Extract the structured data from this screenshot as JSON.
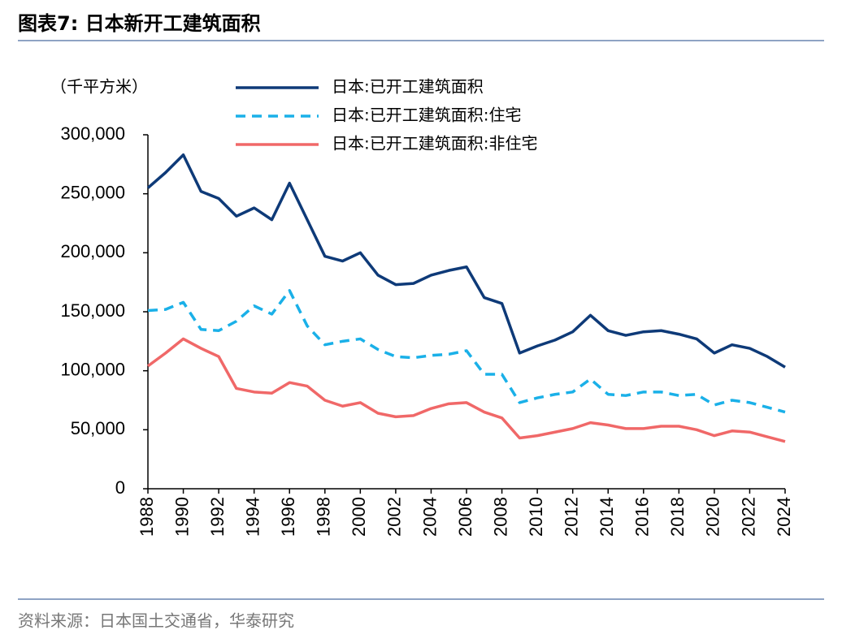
{
  "chart_data": {
    "type": "line",
    "title": "图表7:  日本新开工建筑面积",
    "unit_label": "（千平方米）",
    "source": "资料来源：日本国土交通省，华泰研究",
    "x": [
      1988,
      1989,
      1990,
      1991,
      1992,
      1993,
      1994,
      1995,
      1996,
      1997,
      1998,
      1999,
      2000,
      2001,
      2002,
      2003,
      2004,
      2005,
      2006,
      2007,
      2008,
      2009,
      2010,
      2011,
      2012,
      2013,
      2014,
      2015,
      2016,
      2017,
      2018,
      2019,
      2020,
      2021,
      2022,
      2023,
      2024
    ],
    "series": [
      {
        "name": "日本:已开工建筑面积",
        "color": "#0e3a78",
        "dash": false,
        "values": [
          255000,
          268000,
          283000,
          252000,
          246000,
          231000,
          238000,
          228000,
          259000,
          228000,
          197000,
          193000,
          200000,
          181000,
          173000,
          174000,
          181000,
          185000,
          188000,
          162000,
          157000,
          115000,
          121000,
          126000,
          133000,
          147000,
          134000,
          130000,
          133000,
          134000,
          131000,
          127000,
          115000,
          122000,
          119000,
          112000,
          103000
        ]
      },
      {
        "name": "日本:已开工建筑面积:住宅",
        "color": "#1ab0e8",
        "dash": true,
        "values": [
          151000,
          152000,
          158000,
          135000,
          134000,
          142000,
          155000,
          148000,
          168000,
          138000,
          122000,
          125000,
          127000,
          118000,
          112000,
          111000,
          113000,
          114000,
          117000,
          97000,
          97000,
          73000,
          77000,
          80000,
          82000,
          93000,
          80000,
          79000,
          82000,
          82000,
          79000,
          80000,
          71000,
          75000,
          73000,
          69000,
          65000
        ]
      },
      {
        "name": "日本:已开工建筑面积:非住宅",
        "color": "#f06868",
        "dash": false,
        "values": [
          104000,
          115000,
          127000,
          119000,
          112000,
          85000,
          82000,
          81000,
          90000,
          87000,
          75000,
          70000,
          73000,
          64000,
          61000,
          62000,
          68000,
          72000,
          73000,
          65000,
          60000,
          43000,
          45000,
          48000,
          51000,
          56000,
          54000,
          51000,
          51000,
          53000,
          53000,
          50000,
          45000,
          49000,
          48000,
          44000,
          40000
        ]
      }
    ],
    "xlim": [
      1988,
      2024
    ],
    "xticks": [
      1988,
      1990,
      1992,
      1994,
      1996,
      1998,
      2000,
      2002,
      2004,
      2006,
      2008,
      2010,
      2012,
      2014,
      2016,
      2018,
      2020,
      2022,
      2024
    ],
    "ylim": [
      0,
      300000
    ],
    "yticks": [
      0,
      {
        "value": 50000,
        "label": "50,000"
      },
      {
        "value": 100000,
        "label": "100,000"
      },
      {
        "value": 150000,
        "label": "150,000"
      },
      {
        "value": 200000,
        "label": "200,000"
      },
      {
        "value": 250000,
        "label": "250,000"
      },
      {
        "value": 300000,
        "label": "300,000"
      }
    ],
    "grid": false
  }
}
